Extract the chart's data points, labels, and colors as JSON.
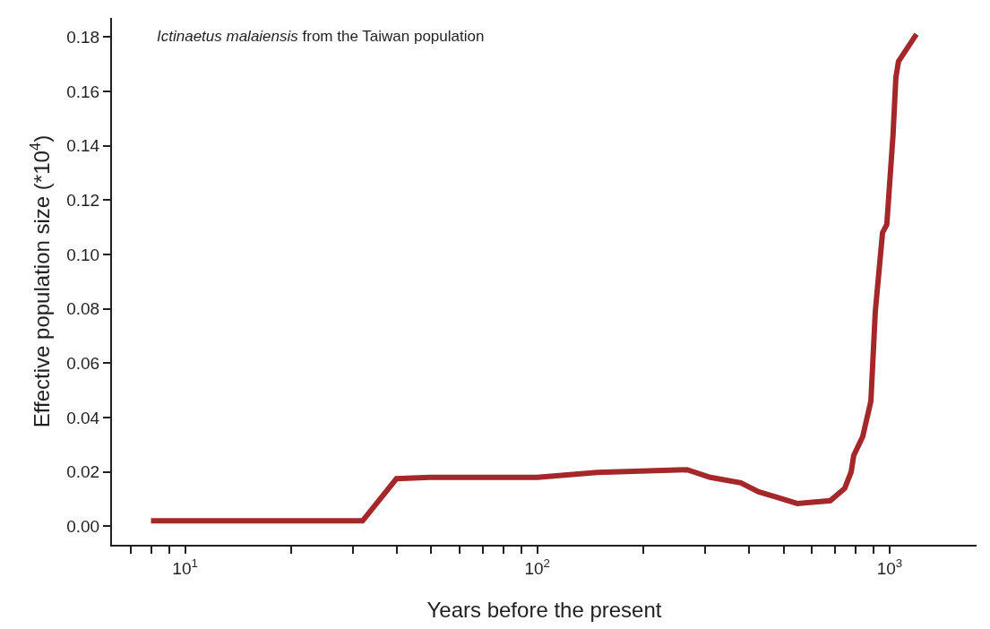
{
  "chart_data": {
    "type": "line",
    "xlabel": "Years before the present",
    "ylabel": "Effective population size (*10$^{4}$)",
    "annotations": [
      "Ictinaetus malaiensis from the Taiwan population"
    ],
    "log": "x",
    "marker": "none",
    "line_style": "solid",
    "xlim": [
      6.2,
      1766
    ],
    "ylim": [
      -0.0068,
      0.187
    ],
    "xticks": [
      {
        "value": 7,
        "label": null
      },
      {
        "value": 8,
        "label": null
      },
      {
        "value": 9,
        "label": null
      },
      {
        "value": 10,
        "label": "10$^{1}$"
      },
      {
        "value": 20,
        "label": null
      },
      {
        "value": 30,
        "label": null
      },
      {
        "value": 40,
        "label": null
      },
      {
        "value": 50,
        "label": null
      },
      {
        "value": 60,
        "label": null
      },
      {
        "value": 70,
        "label": null
      },
      {
        "value": 80,
        "label": null
      },
      {
        "value": 90,
        "label": null
      },
      {
        "value": 100,
        "label": "10$^{2}$"
      },
      {
        "value": 200,
        "label": null
      },
      {
        "value": 300,
        "label": null
      },
      {
        "value": 400,
        "label": null
      },
      {
        "value": 500,
        "label": null
      },
      {
        "value": 600,
        "label": null
      },
      {
        "value": 700,
        "label": null
      },
      {
        "value": 800,
        "label": null
      },
      {
        "value": 900,
        "label": null
      },
      {
        "value": 1000,
        "label": "10$^{3}$"
      }
    ],
    "yticks": [
      {
        "value": 0,
        "label": "0.00"
      },
      {
        "value": 0.02,
        "label": "0.02"
      },
      {
        "value": 0.04,
        "label": "0.04"
      },
      {
        "value": 0.06,
        "label": "0.06"
      },
      {
        "value": 0.08,
        "label": "0.08"
      },
      {
        "value": 0.1,
        "label": "0.10"
      },
      {
        "value": 0.12,
        "label": "0.12"
      },
      {
        "value": 0.14,
        "label": "0.14"
      },
      {
        "value": 0.16,
        "label": "0.16"
      },
      {
        "value": 0.18,
        "label": "0.18"
      }
    ],
    "series": [
      {
        "color": "#a4282a",
        "x": [
          8,
          31.9,
          39.8,
          49.5,
          100,
          148,
          266,
          310,
          378,
          425,
          478,
          547,
          679,
          746,
          778,
          791,
          839,
          885,
          911,
          955,
          982,
          1023,
          1042,
          1060,
          1124,
          1192
        ],
        "values": [
          0.002,
          0.002,
          0.0175,
          0.018,
          0.018,
          0.0198,
          0.0208,
          0.018,
          0.016,
          0.0127,
          0.0107,
          0.0084,
          0.0094,
          0.014,
          0.02,
          0.026,
          0.033,
          0.046,
          0.079,
          0.108,
          0.111,
          0.144,
          0.165,
          0.171,
          0.176,
          0.181
        ]
      }
    ]
  }
}
